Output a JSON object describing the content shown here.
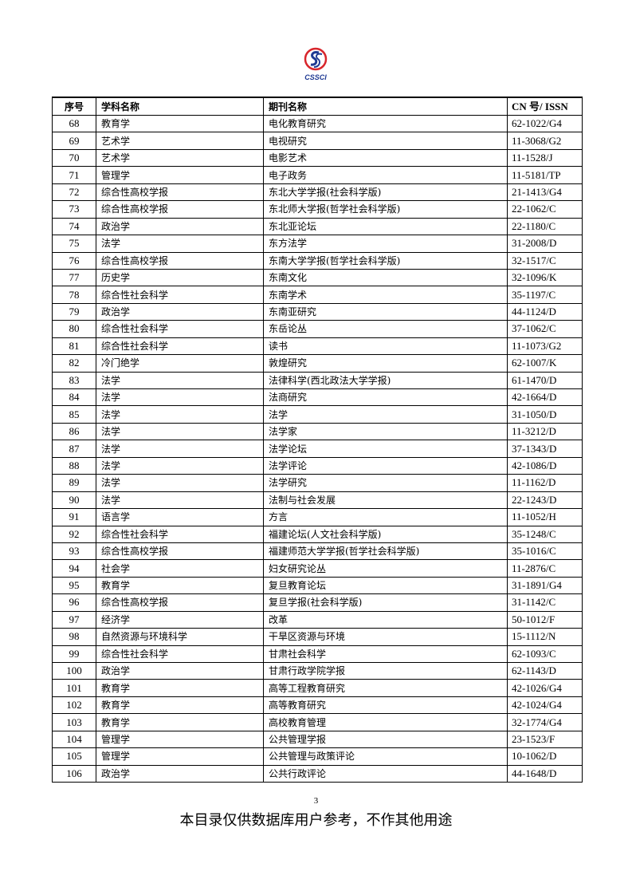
{
  "logo_text": "CSSCI",
  "colors": {
    "logo_red": "#d8262c",
    "logo_blue": "#1f3a93"
  },
  "table": {
    "headers": [
      "序号",
      "学科名称",
      "期刊名称",
      "CN 号/ ISSN"
    ],
    "rows": [
      [
        "68",
        "教育学",
        "电化教育研究",
        "62-1022/G4"
      ],
      [
        "69",
        "艺术学",
        "电视研究",
        "11-3068/G2"
      ],
      [
        "70",
        "艺术学",
        "电影艺术",
        "11-1528/J"
      ],
      [
        "71",
        "管理学",
        "电子政务",
        "11-5181/TP"
      ],
      [
        "72",
        "综合性高校学报",
        "东北大学学报(社会科学版)",
        "21-1413/G4"
      ],
      [
        "73",
        "综合性高校学报",
        "东北师大学报(哲学社会科学版)",
        "22-1062/C"
      ],
      [
        "74",
        "政治学",
        "东北亚论坛",
        "22-1180/C"
      ],
      [
        "75",
        "法学",
        "东方法学",
        "31-2008/D"
      ],
      [
        "76",
        "综合性高校学报",
        "东南大学学报(哲学社会科学版)",
        "32-1517/C"
      ],
      [
        "77",
        "历史学",
        "东南文化",
        "32-1096/K"
      ],
      [
        "78",
        "综合性社会科学",
        "东南学术",
        "35-1197/C"
      ],
      [
        "79",
        "政治学",
        "东南亚研究",
        "44-1124/D"
      ],
      [
        "80",
        "综合性社会科学",
        "东岳论丛",
        "37-1062/C"
      ],
      [
        "81",
        "综合性社会科学",
        "读书",
        "11-1073/G2"
      ],
      [
        "82",
        "冷门绝学",
        "敦煌研究",
        "62-1007/K"
      ],
      [
        "83",
        "法学",
        "法律科学(西北政法大学学报)",
        "61-1470/D"
      ],
      [
        "84",
        "法学",
        "法商研究",
        "42-1664/D"
      ],
      [
        "85",
        "法学",
        "法学",
        "31-1050/D"
      ],
      [
        "86",
        "法学",
        "法学家",
        "11-3212/D"
      ],
      [
        "87",
        "法学",
        "法学论坛",
        "37-1343/D"
      ],
      [
        "88",
        "法学",
        "法学评论",
        "42-1086/D"
      ],
      [
        "89",
        "法学",
        "法学研究",
        "11-1162/D"
      ],
      [
        "90",
        "法学",
        "法制与社会发展",
        "22-1243/D"
      ],
      [
        "91",
        "语言学",
        "方言",
        "11-1052/H"
      ],
      [
        "92",
        "综合性社会科学",
        "福建论坛(人文社会科学版)",
        "35-1248/C"
      ],
      [
        "93",
        "综合性高校学报",
        "福建师范大学学报(哲学社会科学版)",
        "35-1016/C"
      ],
      [
        "94",
        "社会学",
        "妇女研究论丛",
        "11-2876/C"
      ],
      [
        "95",
        "教育学",
        "复旦教育论坛",
        "31-1891/G4"
      ],
      [
        "96",
        "综合性高校学报",
        "复旦学报(社会科学版)",
        "31-1142/C"
      ],
      [
        "97",
        "经济学",
        "改革",
        "50-1012/F"
      ],
      [
        "98",
        "自然资源与环境科学",
        "干旱区资源与环境",
        "15-1112/N"
      ],
      [
        "99",
        "综合性社会科学",
        "甘肃社会科学",
        "62-1093/C"
      ],
      [
        "100",
        "政治学",
        "甘肃行政学院学报",
        "62-1143/D"
      ],
      [
        "101",
        "教育学",
        "高等工程教育研究",
        "42-1026/G4"
      ],
      [
        "102",
        "教育学",
        "高等教育研究",
        "42-1024/G4"
      ],
      [
        "103",
        "教育学",
        "高校教育管理",
        "32-1774/G4"
      ],
      [
        "104",
        "管理学",
        "公共管理学报",
        "23-1523/F"
      ],
      [
        "105",
        "管理学",
        "公共管理与政策评论",
        "10-1062/D"
      ],
      [
        "106",
        "政治学",
        "公共行政评论",
        "44-1648/D"
      ]
    ]
  },
  "page_number": "3",
  "footer": "本目录仅供数据库用户参考，不作其他用途"
}
